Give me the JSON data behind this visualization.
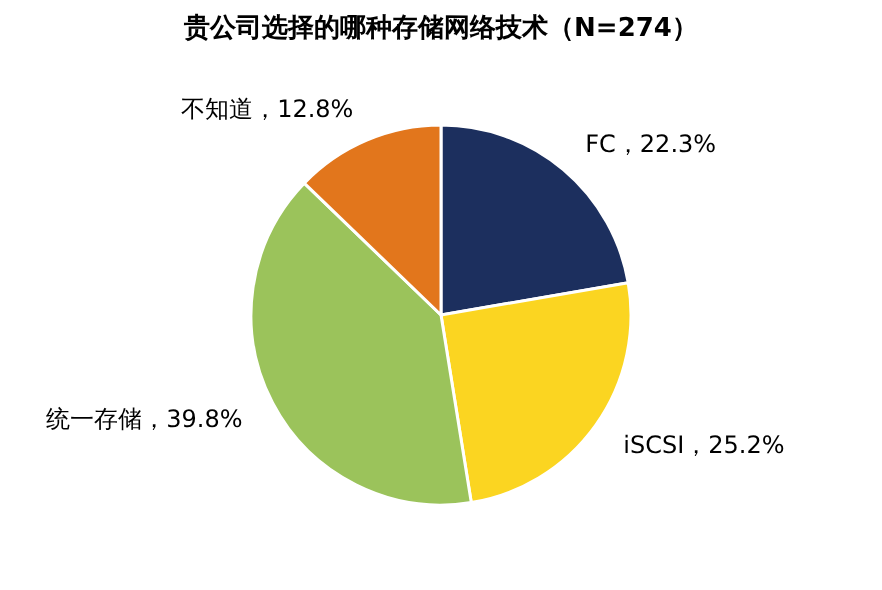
{
  "chart_data": {
    "type": "pie",
    "title": "贵公司选择的哪种存储网络技术（N=274）",
    "categories": [
      "FC",
      "iSCSI",
      "统一存储",
      "不知道"
    ],
    "values": [
      22.3,
      25.2,
      39.8,
      12.8
    ],
    "value_labels": [
      "22.3%",
      "25.2%",
      "39.8%",
      "12.8%"
    ],
    "colors": [
      "#1c2f5e",
      "#fbd521",
      "#9bc35b",
      "#e2761c"
    ],
    "legend": false
  }
}
